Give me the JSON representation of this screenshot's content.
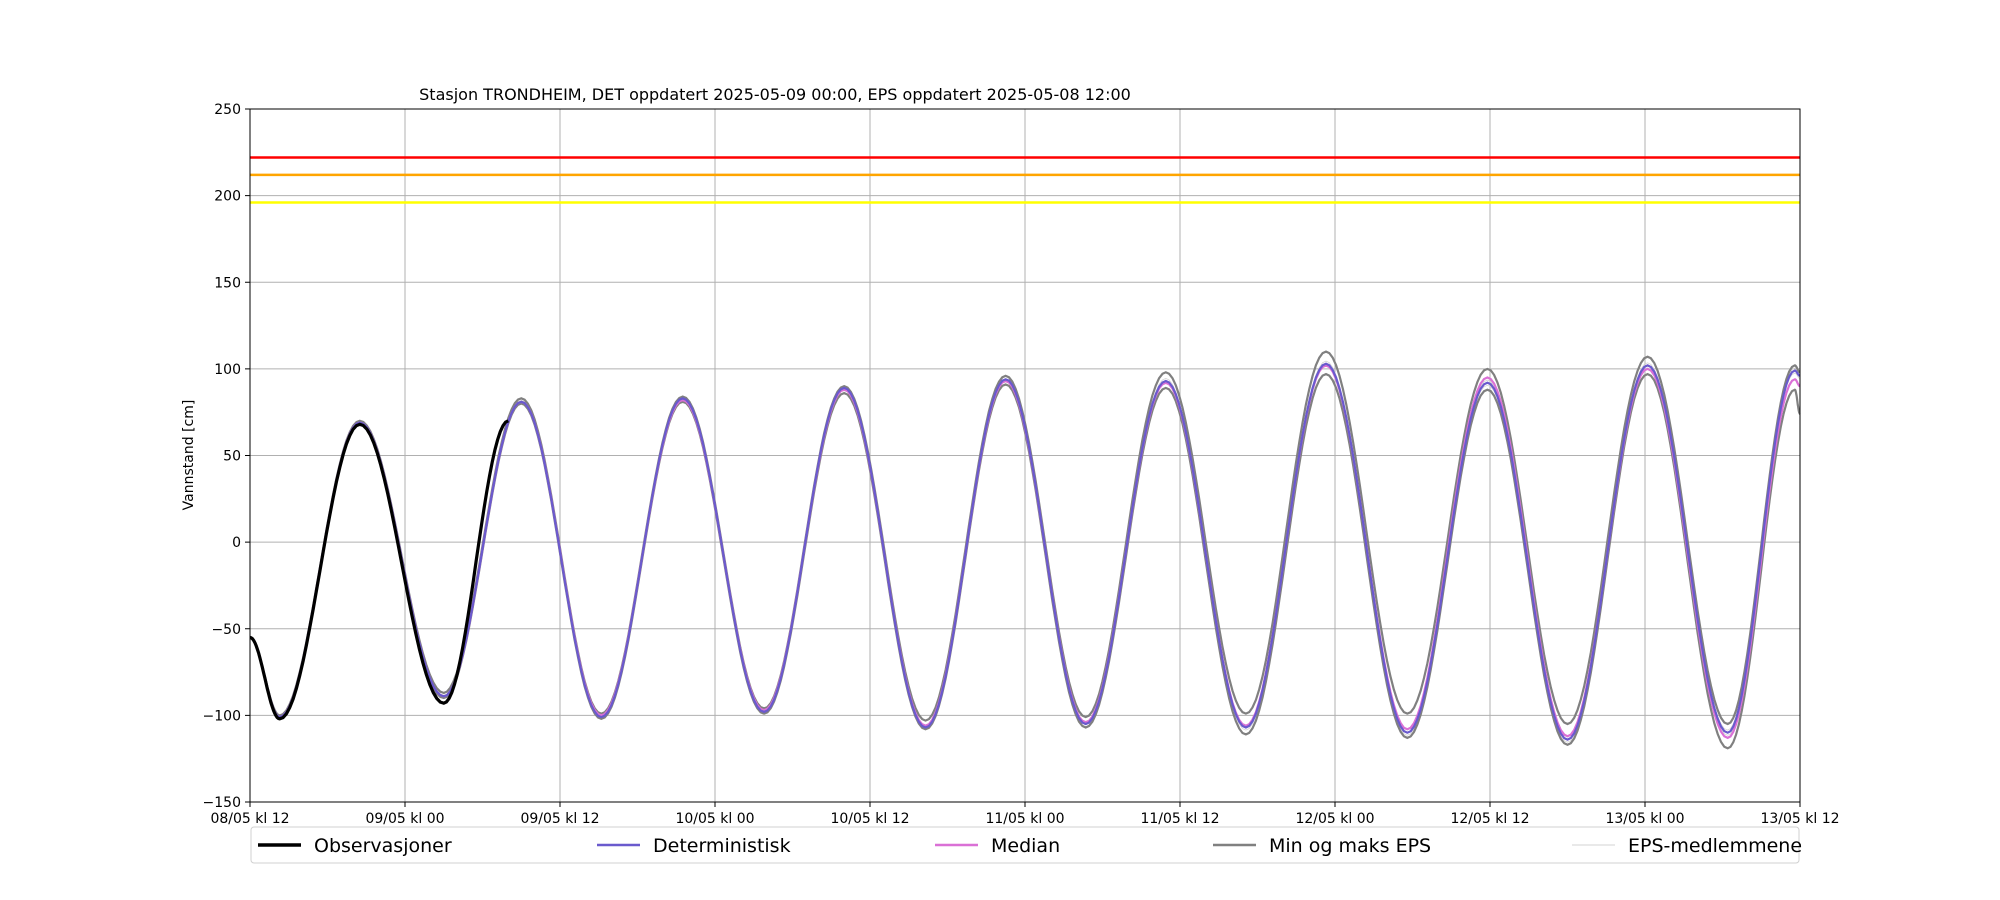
{
  "chart_data": {
    "type": "line",
    "title": "Stasjon TRONDHEIM, DET oppdatert 2025-05-09 00:00, EPS oppdatert 2025-05-08 12:00",
    "xlabel": "",
    "ylabel": "Vannstand [cm]",
    "ylim": [
      -150,
      250
    ],
    "xlim_hours": [
      0,
      120
    ],
    "yticks": [
      -150,
      -100,
      -50,
      0,
      50,
      100,
      150,
      200,
      250
    ],
    "xticks": [
      {
        "t": 0,
        "label": "08/05 kl 12"
      },
      {
        "t": 12,
        "label": "09/05 kl 00"
      },
      {
        "t": 24,
        "label": "09/05 kl 12"
      },
      {
        "t": 36,
        "label": "10/05 kl 00"
      },
      {
        "t": 48,
        "label": "10/05 kl 12"
      },
      {
        "t": 60,
        "label": "11/05 kl 00"
      },
      {
        "t": 72,
        "label": "11/05 kl 12"
      },
      {
        "t": 84,
        "label": "12/05 kl 00"
      },
      {
        "t": 96,
        "label": "12/05 kl 12"
      },
      {
        "t": 108,
        "label": "13/05 kl 00"
      },
      {
        "t": 120,
        "label": "13/05 kl 12"
      }
    ],
    "grid": true,
    "legend_position": "bottom",
    "thresholds": [
      {
        "value": 222,
        "color": "#ff0000"
      },
      {
        "value": 212,
        "color": "#ffa500"
      },
      {
        "value": 196,
        "color": "#ffff00"
      }
    ],
    "extrema": {
      "observed": [
        {
          "t": 0,
          "v": -55
        },
        {
          "t": 2.3,
          "v": -102
        },
        {
          "t": 8.5,
          "v": 68
        },
        {
          "t": 15.0,
          "v": -93
        },
        {
          "t": 20.0,
          "v": 70
        }
      ],
      "deterministic": [
        {
          "t": 0,
          "v": -55
        },
        {
          "t": 2.3,
          "v": -101
        },
        {
          "t": 8.5,
          "v": 69
        },
        {
          "t": 15.0,
          "v": -89
        },
        {
          "t": 21.0,
          "v": 81
        },
        {
          "t": 27.2,
          "v": -101
        },
        {
          "t": 33.5,
          "v": 83
        },
        {
          "t": 39.8,
          "v": -98
        },
        {
          "t": 46.0,
          "v": 89
        },
        {
          "t": 52.3,
          "v": -107
        },
        {
          "t": 58.5,
          "v": 94
        },
        {
          "t": 64.7,
          "v": -105
        },
        {
          "t": 70.9,
          "v": 93
        },
        {
          "t": 77.1,
          "v": -107
        },
        {
          "t": 83.3,
          "v": 103
        },
        {
          "t": 89.6,
          "v": -110
        },
        {
          "t": 95.8,
          "v": 92
        },
        {
          "t": 102.0,
          "v": -114
        },
        {
          "t": 108.2,
          "v": 102
        },
        {
          "t": 114.4,
          "v": -110
        },
        {
          "t": 119.6,
          "v": 99
        },
        {
          "t": 120,
          "v": 96
        }
      ],
      "median": [
        {
          "t": 0,
          "v": -55
        },
        {
          "t": 2.3,
          "v": -101
        },
        {
          "t": 8.5,
          "v": 69
        },
        {
          "t": 15.0,
          "v": -89
        },
        {
          "t": 21.0,
          "v": 81
        },
        {
          "t": 27.2,
          "v": -100
        },
        {
          "t": 33.5,
          "v": 82
        },
        {
          "t": 39.8,
          "v": -97
        },
        {
          "t": 46.0,
          "v": 88
        },
        {
          "t": 52.3,
          "v": -106
        },
        {
          "t": 58.5,
          "v": 93
        },
        {
          "t": 64.7,
          "v": -104
        },
        {
          "t": 70.9,
          "v": 92
        },
        {
          "t": 77.1,
          "v": -106
        },
        {
          "t": 83.3,
          "v": 102
        },
        {
          "t": 89.6,
          "v": -108
        },
        {
          "t": 95.8,
          "v": 95
        },
        {
          "t": 102.0,
          "v": -112
        },
        {
          "t": 108.2,
          "v": 100
        },
        {
          "t": 114.4,
          "v": -113
        },
        {
          "t": 119.6,
          "v": 94
        },
        {
          "t": 120,
          "v": 90
        }
      ],
      "eps_max": [
        {
          "t": 0,
          "v": -55
        },
        {
          "t": 2.3,
          "v": -100
        },
        {
          "t": 8.5,
          "v": 70
        },
        {
          "t": 15.0,
          "v": -87
        },
        {
          "t": 21.0,
          "v": 83
        },
        {
          "t": 27.2,
          "v": -99
        },
        {
          "t": 33.5,
          "v": 84
        },
        {
          "t": 39.8,
          "v": -96
        },
        {
          "t": 46.0,
          "v": 90
        },
        {
          "t": 52.3,
          "v": -103
        },
        {
          "t": 58.5,
          "v": 96
        },
        {
          "t": 64.7,
          "v": -101
        },
        {
          "t": 70.9,
          "v": 98
        },
        {
          "t": 77.1,
          "v": -99
        },
        {
          "t": 83.3,
          "v": 110
        },
        {
          "t": 89.6,
          "v": -99
        },
        {
          "t": 95.8,
          "v": 100
        },
        {
          "t": 102.0,
          "v": -105
        },
        {
          "t": 108.2,
          "v": 107
        },
        {
          "t": 114.4,
          "v": -105
        },
        {
          "t": 119.6,
          "v": 102
        },
        {
          "t": 120,
          "v": 98
        }
      ],
      "eps_min": [
        {
          "t": 0,
          "v": -55
        },
        {
          "t": 2.3,
          "v": -102
        },
        {
          "t": 8.5,
          "v": 68
        },
        {
          "t": 15.0,
          "v": -90
        },
        {
          "t": 21.0,
          "v": 80
        },
        {
          "t": 27.2,
          "v": -102
        },
        {
          "t": 33.5,
          "v": 81
        },
        {
          "t": 39.8,
          "v": -99
        },
        {
          "t": 46.0,
          "v": 86
        },
        {
          "t": 52.3,
          "v": -108
        },
        {
          "t": 58.5,
          "v": 91
        },
        {
          "t": 64.7,
          "v": -107
        },
        {
          "t": 70.9,
          "v": 89
        },
        {
          "t": 77.1,
          "v": -111
        },
        {
          "t": 83.3,
          "v": 97
        },
        {
          "t": 89.6,
          "v": -113
        },
        {
          "t": 95.8,
          "v": 88
        },
        {
          "t": 102.0,
          "v": -117
        },
        {
          "t": 108.2,
          "v": 97
        },
        {
          "t": 114.4,
          "v": -119
        },
        {
          "t": 119.6,
          "v": 88
        },
        {
          "t": 120,
          "v": 74
        }
      ]
    },
    "series": [
      {
        "key": "observed",
        "name": "Observasjoner",
        "color": "#000000"
      },
      {
        "key": "deterministic",
        "name": "Deterministisk",
        "color": "#6a5acd"
      },
      {
        "key": "median",
        "name": "Median",
        "color": "#da70d6"
      },
      {
        "key": "eps_minmax",
        "name": "Min og maks EPS",
        "color": "#808080"
      },
      {
        "key": "eps_members",
        "name": "EPS-medlemmene",
        "color": "#d3d3d3"
      }
    ]
  }
}
